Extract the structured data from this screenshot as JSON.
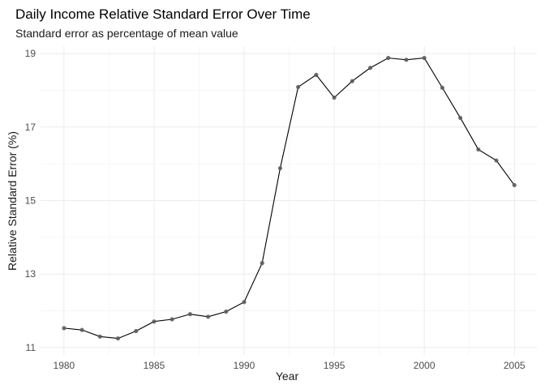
{
  "chart_data": {
    "type": "line",
    "title": "Daily Income Relative Standard Error Over Time",
    "subtitle": "Standard error as percentage of mean value",
    "xlabel": "Year",
    "ylabel": "Relative Standard Error (%)",
    "xlim": [
      1980,
      2005
    ],
    "ylim": [
      11,
      19
    ],
    "x_ticks": [
      1980,
      1985,
      1990,
      1995,
      2000,
      2005
    ],
    "y_ticks": [
      11,
      13,
      15,
      17,
      19
    ],
    "grid": true,
    "legend": "none",
    "colors": {
      "line": "#000000",
      "point": "#595959",
      "grid_major": "#ebebeb",
      "grid_minor": "#f5f5f5"
    },
    "series": [
      {
        "x": [
          1980,
          1981,
          1982,
          1983,
          1984,
          1985,
          1986,
          1987,
          1988,
          1989,
          1990,
          1991,
          1992,
          1993,
          1994,
          1995,
          1996,
          1997,
          1998,
          1999,
          2000,
          2001,
          2002,
          2003,
          2004,
          2005
        ],
        "values": [
          11.53,
          11.48,
          11.3,
          11.25,
          11.45,
          11.71,
          11.77,
          11.91,
          11.84,
          11.98,
          12.24,
          13.3,
          15.88,
          18.09,
          18.42,
          17.8,
          18.25,
          18.61,
          18.88,
          18.83,
          18.88,
          18.07,
          17.25,
          16.39,
          16.09,
          15.42
        ]
      }
    ]
  }
}
